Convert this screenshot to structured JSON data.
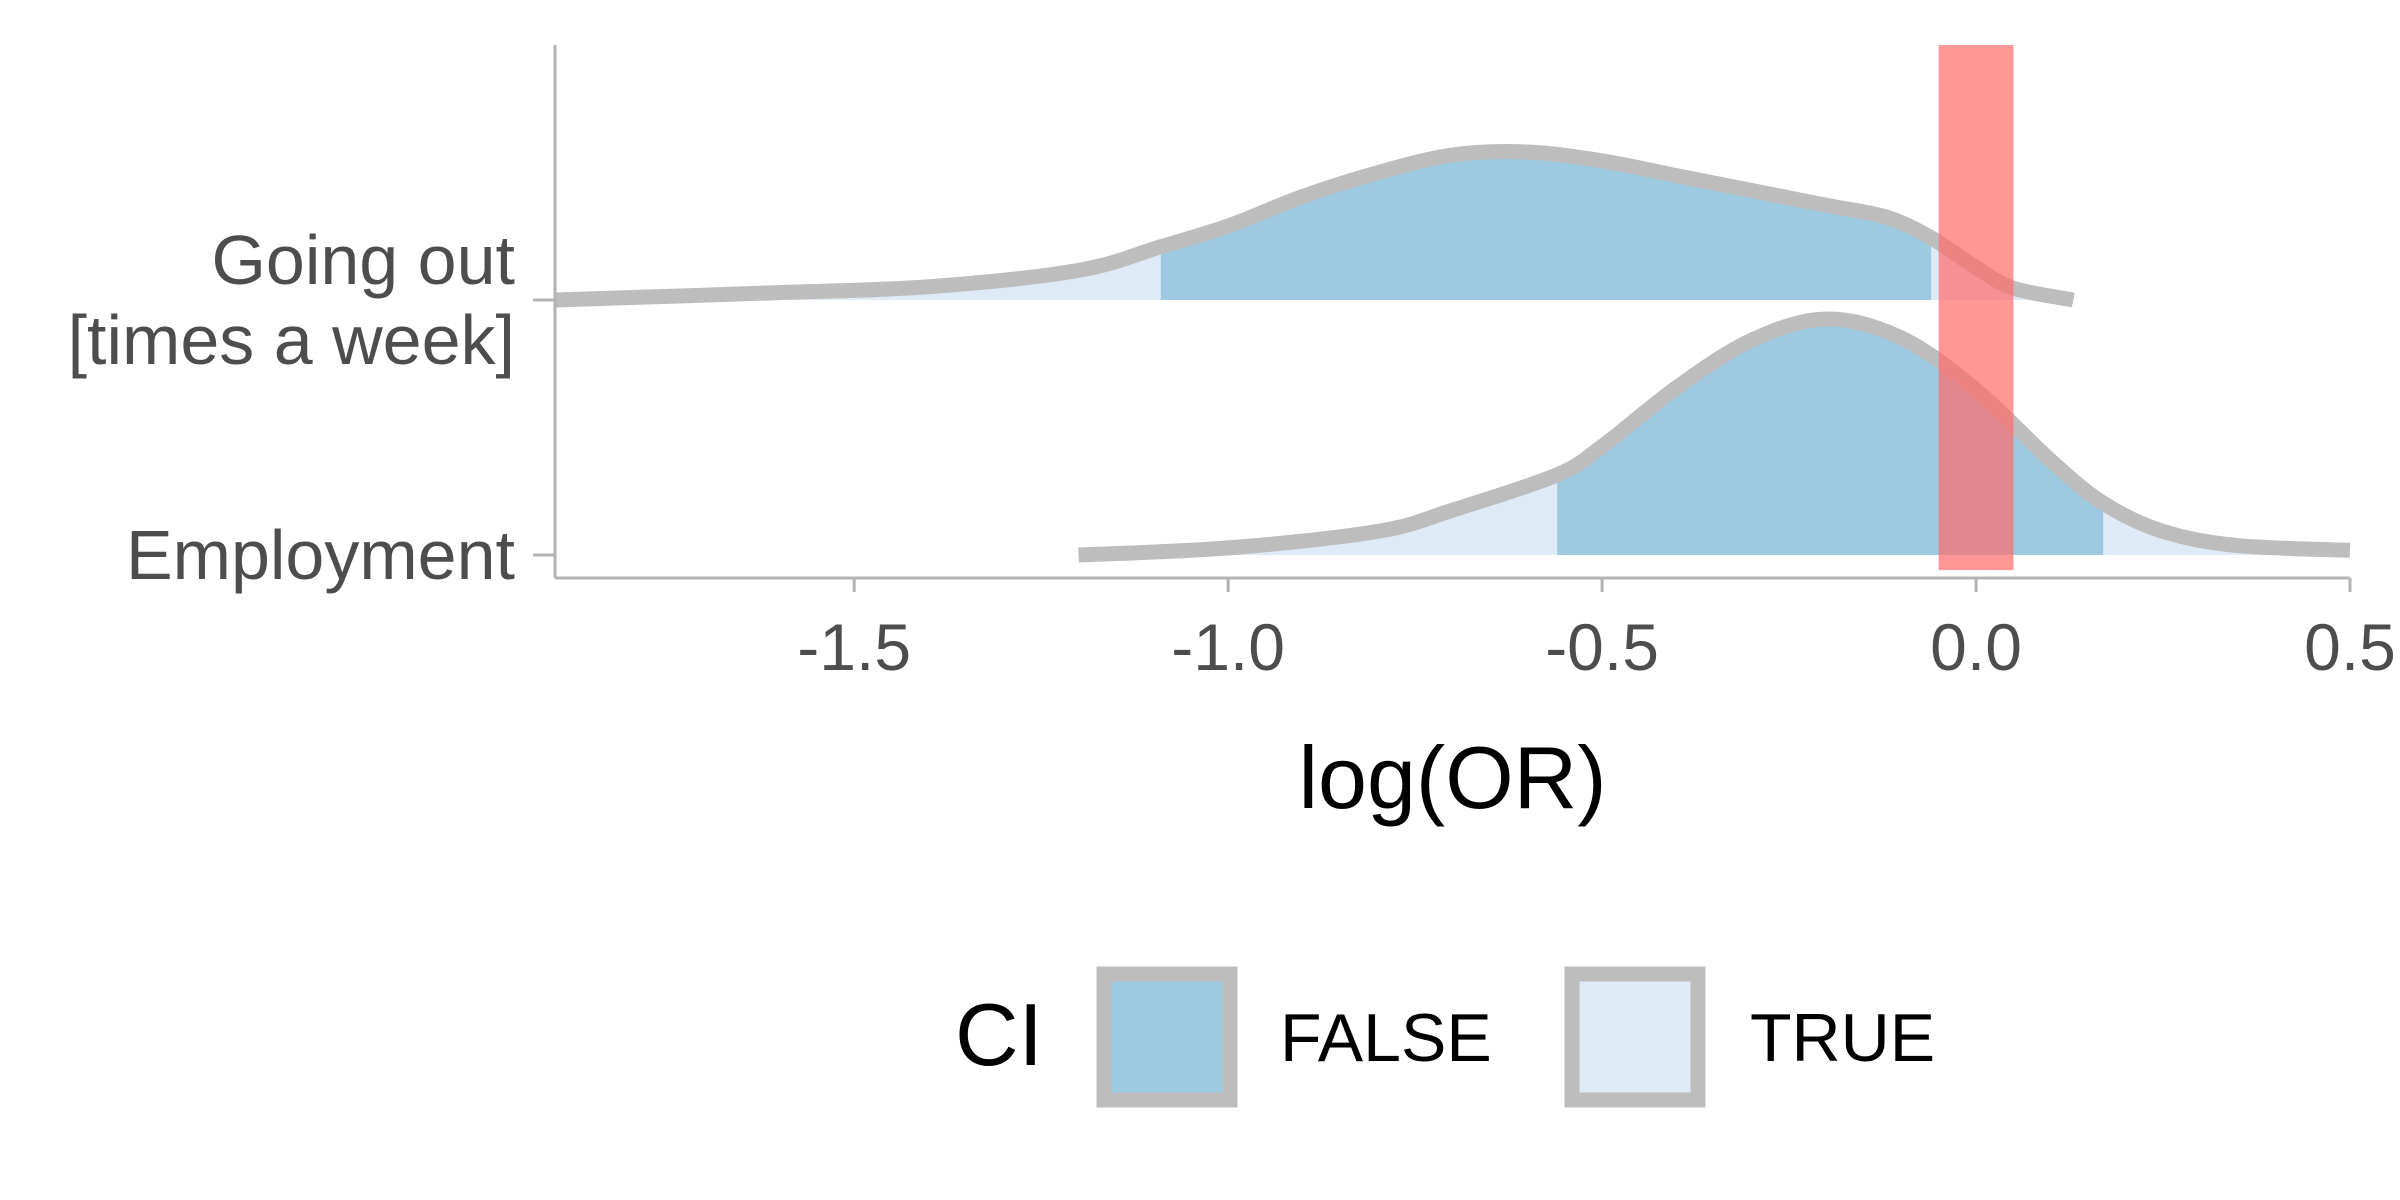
{
  "chart_data": {
    "type": "area",
    "xlabel": "log(OR)",
    "ylabel": "",
    "xlim": [
      -1.9,
      0.5
    ],
    "x_ticks": [
      -1.5,
      -1.0,
      -0.5,
      0.0,
      0.5
    ],
    "x_tick_labels": [
      "-1.5",
      "-1.0",
      "-0.5",
      "0.0",
      "0.5"
    ],
    "categories": [
      "Going out\n[times a week]",
      "Employment"
    ],
    "category_lines": [
      [
        "Going out",
        "[times a week]"
      ],
      [
        "Employment"
      ]
    ],
    "legend": {
      "title": "CI",
      "placement": "bottom",
      "entries": [
        {
          "label": "FALSE",
          "color": "#9ecae1"
        },
        {
          "label": "TRUE",
          "color": "#deebf7"
        }
      ]
    },
    "reference_band": {
      "x_start": -0.05,
      "x_end": 0.05,
      "color": "#ff6b6b"
    },
    "series": [
      {
        "category": "Going out\n[times a week]",
        "ci_range": [
          -1.09,
          -0.06
        ],
        "x": [
          -1.9,
          -1.6,
          -1.4,
          -1.2,
          -1.09,
          -1.0,
          -0.9,
          -0.8,
          -0.7,
          -0.6,
          -0.5,
          -0.4,
          -0.3,
          -0.2,
          -0.12,
          -0.06,
          0.0,
          0.05,
          0.13
        ],
        "density": [
          0.0,
          0.05,
          0.09,
          0.2,
          0.36,
          0.5,
          0.7,
          0.86,
          0.98,
          1.0,
          0.94,
          0.84,
          0.74,
          0.64,
          0.56,
          0.42,
          0.22,
          0.08,
          0.0
        ]
      },
      {
        "category": "Employment",
        "ci_range": [
          -0.56,
          0.17
        ],
        "x": [
          -1.2,
          -1.0,
          -0.8,
          -0.7,
          -0.56,
          -0.5,
          -0.4,
          -0.3,
          -0.2,
          -0.1,
          0.0,
          0.1,
          0.17,
          0.25,
          0.35,
          0.5
        ],
        "density": [
          0.0,
          0.03,
          0.1,
          0.19,
          0.34,
          0.46,
          0.71,
          0.91,
          1.0,
          0.92,
          0.7,
          0.4,
          0.22,
          0.1,
          0.04,
          0.02
        ]
      }
    ]
  }
}
